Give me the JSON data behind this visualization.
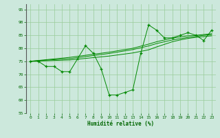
{
  "x": [
    0,
    1,
    2,
    3,
    4,
    5,
    6,
    7,
    8,
    9,
    10,
    11,
    12,
    13,
    14,
    15,
    16,
    17,
    18,
    19,
    20,
    21,
    22,
    23
  ],
  "y_main": [
    75,
    75,
    73,
    73,
    71,
    71,
    76,
    81,
    78,
    72,
    62,
    62,
    63,
    64,
    78,
    89,
    87,
    84,
    84,
    85,
    86,
    85,
    83,
    87
  ],
  "y_line1": [
    75,
    75.1,
    75.2,
    75.3,
    75.4,
    75.5,
    75.8,
    76.1,
    76.4,
    76.7,
    77.0,
    77.4,
    77.8,
    78.2,
    78.8,
    79.4,
    80.5,
    81.5,
    82.5,
    83.2,
    83.8,
    84.2,
    84.5,
    84.8
  ],
  "y_line2": [
    75,
    75.2,
    75.4,
    75.6,
    75.8,
    76.0,
    76.4,
    76.8,
    77.2,
    77.6,
    78.0,
    78.5,
    79.0,
    79.5,
    80.2,
    80.9,
    81.8,
    82.5,
    83.2,
    83.7,
    84.2,
    84.6,
    85.0,
    85.3
  ],
  "y_line3": [
    75,
    75.3,
    75.6,
    75.9,
    76.2,
    76.5,
    76.9,
    77.3,
    77.7,
    78.1,
    78.5,
    79.0,
    79.5,
    80.0,
    80.8,
    81.6,
    82.5,
    83.2,
    83.9,
    84.4,
    84.8,
    85.0,
    85.3,
    85.6
  ],
  "bg_color": "#cce8dc",
  "line_color": "#008800",
  "grid_color": "#99cc99",
  "axis_label_color": "#006600",
  "tick_color": "#006600",
  "xlabel": "Humidité relative (%)",
  "ylim": [
    55,
    97
  ],
  "xlim": [
    -0.5,
    23.5
  ],
  "yticks": [
    55,
    60,
    65,
    70,
    75,
    80,
    85,
    90,
    95
  ],
  "xticks": [
    0,
    1,
    2,
    3,
    4,
    5,
    6,
    7,
    8,
    9,
    10,
    11,
    12,
    13,
    14,
    15,
    16,
    17,
    18,
    19,
    20,
    21,
    22,
    23
  ]
}
